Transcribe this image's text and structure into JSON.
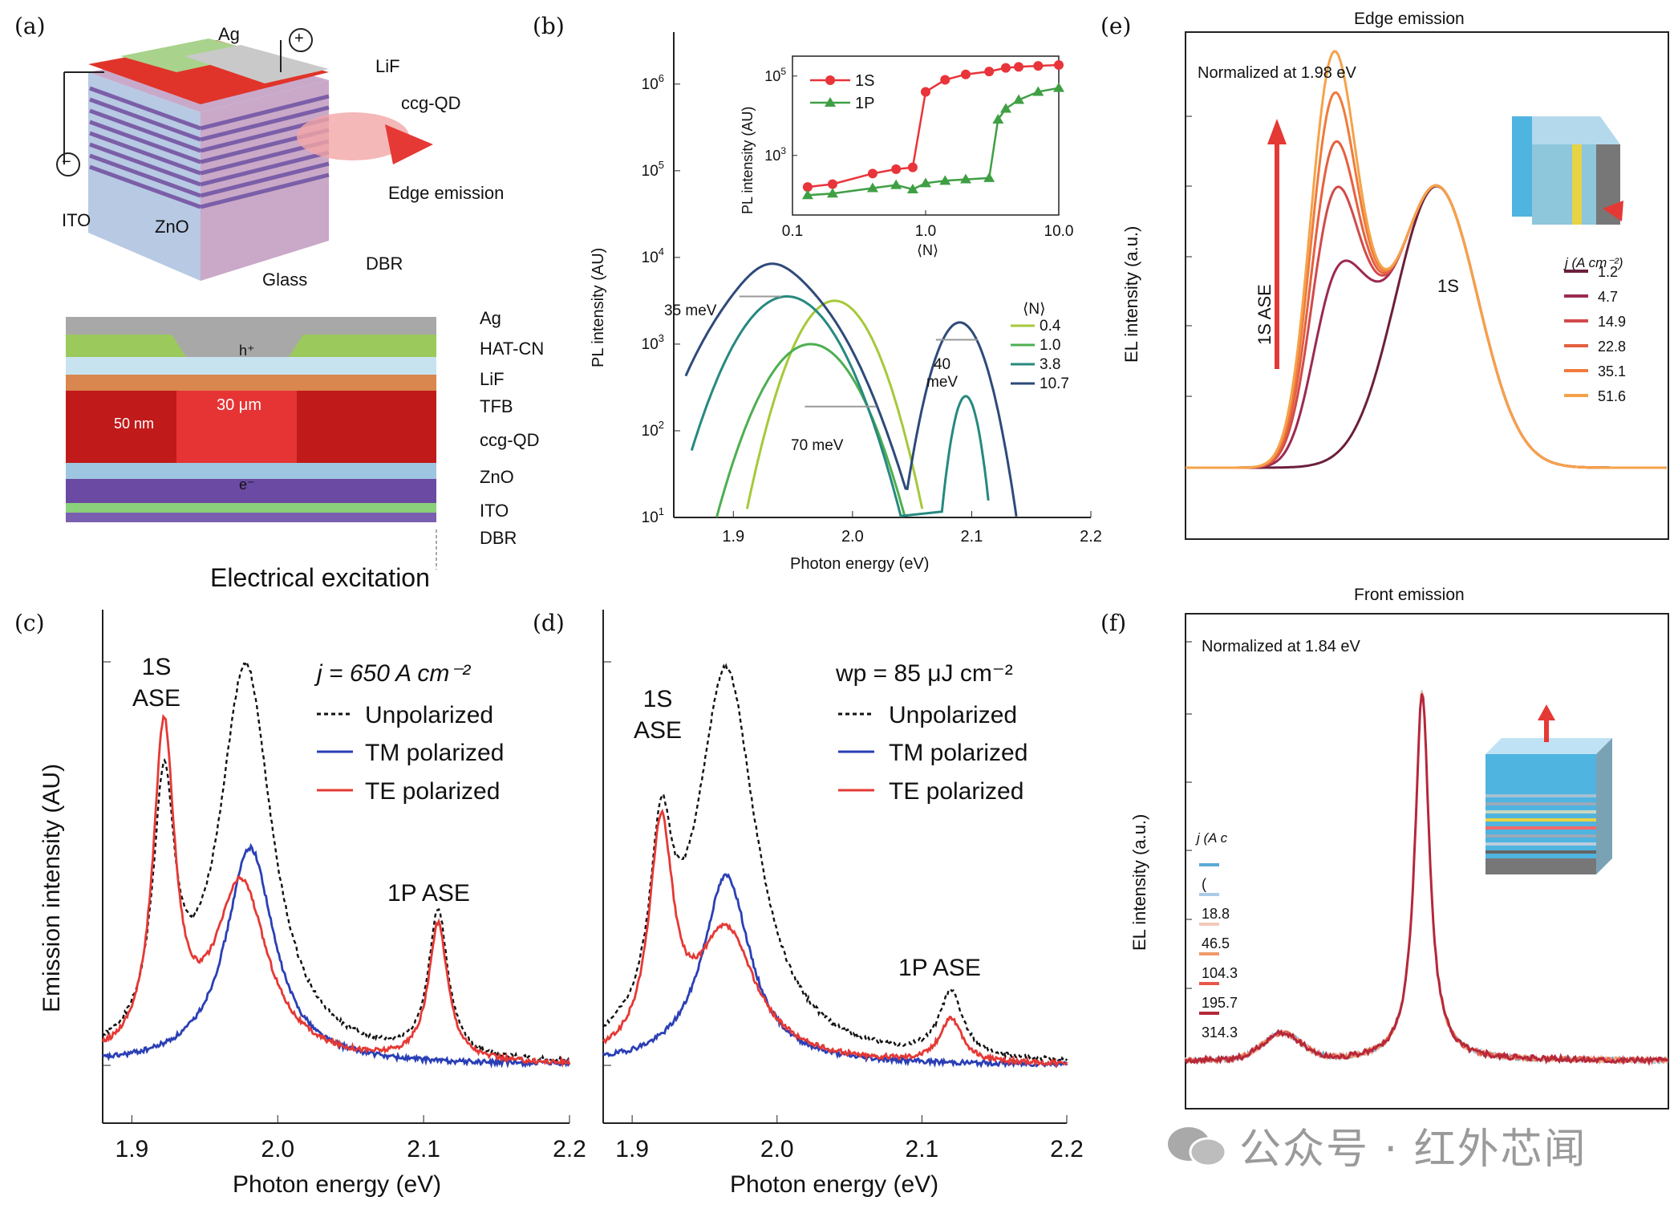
{
  "panel_labels": {
    "a": "(a)",
    "b": "(b)",
    "c": "(c)",
    "d": "(d)",
    "e": "(e)",
    "f": "(f)"
  },
  "panel_a": {
    "device_labels": [
      "Ag",
      "LiF",
      "ccg-QD",
      "Edge emission",
      "ITO",
      "ZnO",
      "DBR",
      "Glass"
    ],
    "plus_sign": "+",
    "minus_sign": "−",
    "cross_layers": [
      "Ag",
      "HAT-CN",
      "LiF",
      "TFB",
      "ccg-QD",
      "ZnO",
      "ITO",
      "DBR"
    ],
    "thickness": "50 nm",
    "width": "30 μm",
    "hole": "h⁺",
    "electron": "e⁻",
    "caption": "Electrical excitation",
    "colors": {
      "red": "#d62020",
      "purple": "#7a4fa0",
      "blue": "#9fc6e0",
      "gray": "#9a9a9a",
      "green": "#8bc34a"
    }
  },
  "chart_data": [
    {
      "id": "b",
      "type": "line",
      "xlabel": "Photon energy (eV)",
      "ylabel": "PL intensity (AU)",
      "xlim": [
        1.85,
        2.2
      ],
      "ylim_log10": [
        1,
        6.6
      ],
      "xticks": [
        "1.9",
        "2.0",
        "2.1",
        "2.2"
      ],
      "yticks": [
        "10^1",
        "10^2",
        "10^3",
        "10^4",
        "10^5",
        "10^6"
      ],
      "legend_title": "⟨N⟩",
      "series": [
        {
          "name": "0.4",
          "color": "#a5c93a"
        },
        {
          "name": "1.0",
          "color": "#4caf50"
        },
        {
          "name": "3.8",
          "color": "#26897f"
        },
        {
          "name": "10.7",
          "color": "#2e4a7a"
        }
      ],
      "annotations": [
        "35 meV",
        "70 meV",
        "40\nmeV"
      ],
      "inset": {
        "xlabel": "⟨N⟩",
        "ylabel": "PL intensity (AU)",
        "xticks": [
          "0.1",
          "1.0",
          "10.0"
        ],
        "yticks": [
          "10^3",
          "10^5"
        ],
        "series": [
          {
            "name": "1S",
            "color": "#e8343a",
            "x": [
              0.13,
              0.2,
              0.4,
              0.6,
              0.8,
              1.0,
              1.4,
              2,
              3,
              4,
              5,
              7,
              10
            ],
            "y": [
              160,
              190,
              350,
              450,
              500,
              40000,
              80000,
              110000,
              130000,
              160000,
              170000,
              180000,
              190000
            ]
          },
          {
            "name": "1P",
            "color": "#3f9f44",
            "x": [
              0.13,
              0.2,
              0.4,
              0.6,
              0.8,
              1.0,
              1.4,
              2,
              3,
              3.5,
              4,
              5,
              7,
              10
            ],
            "y": [
              100,
              110,
              150,
              180,
              140,
              200,
              230,
              250,
              270,
              8000,
              15000,
              25000,
              40000,
              50000
            ]
          }
        ]
      }
    },
    {
      "id": "c",
      "type": "line",
      "xlabel": "Photon energy (eV)",
      "ylabel": "Emission intensity (AU)",
      "xlim": [
        1.88,
        2.2
      ],
      "xticks": [
        "1.9",
        "2.0",
        "2.1",
        "2.2"
      ],
      "annotations": [
        "1S\nASE",
        "1P ASE",
        "j = 650 A cm⁻²"
      ],
      "legend_title": "j = 650 A cm⁻²",
      "series": [
        {
          "name": "Unpolarized",
          "color": "#111111",
          "dash": true
        },
        {
          "name": "TM polarized",
          "color": "#2a3fb5"
        },
        {
          "name": "TE polarized",
          "color": "#e53935"
        }
      ]
    },
    {
      "id": "d",
      "type": "line",
      "xlabel": "Photon energy (eV)",
      "ylabel": "",
      "xlim": [
        1.88,
        2.2
      ],
      "xticks": [
        "1.9",
        "2.0",
        "2.1",
        "2.2"
      ],
      "annotations": [
        "1S\nASE",
        "1P ASE"
      ],
      "legend_title": "wp = 85 μJ cm⁻²",
      "series": [
        {
          "name": "Unpolarized",
          "color": "#111111",
          "dash": true
        },
        {
          "name": "TM polarized",
          "color": "#2a3fb5"
        },
        {
          "name": "TE polarized",
          "color": "#e53935"
        }
      ]
    },
    {
      "id": "e",
      "type": "line",
      "title": "Edge emission",
      "ylabel": "EL intensity (a.u.)",
      "note": "Normalized at 1.98 eV",
      "annotations": [
        "1S ASE",
        "1S"
      ],
      "legend_title": "j (A cm⁻²)",
      "series": [
        {
          "name": "1.2",
          "color": "#6b1f3d"
        },
        {
          "name": "4.7",
          "color": "#9c2a4f"
        },
        {
          "name": "14.9",
          "color": "#d14a4a"
        },
        {
          "name": "22.8",
          "color": "#e5603e"
        },
        {
          "name": "35.1",
          "color": "#ef7b3c"
        },
        {
          "name": "51.6",
          "color": "#f5a24a"
        }
      ]
    },
    {
      "id": "f",
      "type": "line",
      "title": "Front emission",
      "ylabel": "EL intensity (a.u.)",
      "note": "Normalized at 1.84 eV",
      "legend_title": "j (A c",
      "series": [
        {
          "name": "(",
          "color": "#5aa9d6"
        },
        {
          "name": "18.8",
          "color": "#a9cbe6"
        },
        {
          "name": "46.5",
          "color": "#f2c9b8"
        },
        {
          "name": "104.3",
          "color": "#f09a6a"
        },
        {
          "name": "195.7",
          "color": "#e85848"
        },
        {
          "name": "314.3",
          "color": "#b5283a"
        }
      ]
    }
  ],
  "watermark": "公众号 · 红外芯闻"
}
